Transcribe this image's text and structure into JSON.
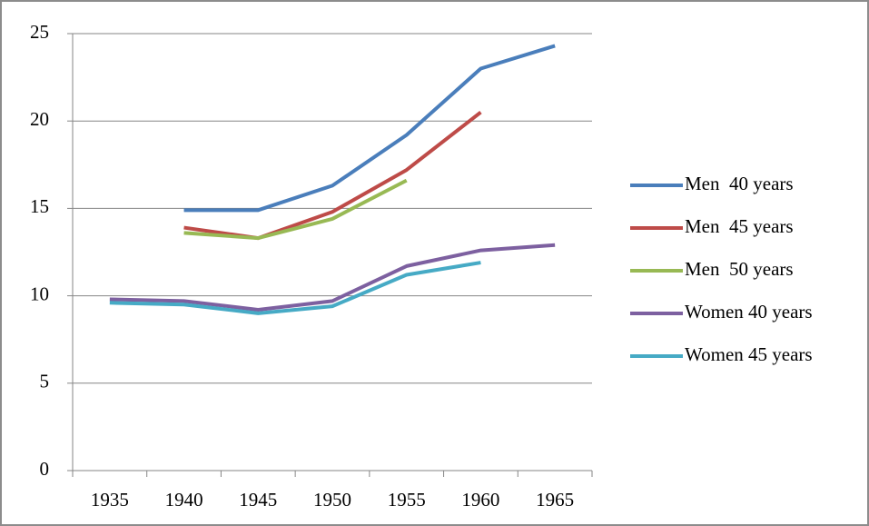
{
  "chart_data": {
    "type": "line",
    "categories": [
      "1935",
      "1940",
      "1945",
      "1950",
      "1955",
      "1960",
      "1965"
    ],
    "series": [
      {
        "name": "Men  40 years",
        "color": "#4a7ebb",
        "values": [
          null,
          14.9,
          14.9,
          16.3,
          19.2,
          23.0,
          24.3
        ]
      },
      {
        "name": "Men  45 years",
        "color": "#be4b48",
        "values": [
          null,
          13.9,
          13.3,
          14.8,
          17.2,
          20.5,
          null
        ]
      },
      {
        "name": "Men  50 years",
        "color": "#98b954",
        "values": [
          null,
          13.6,
          13.3,
          14.4,
          16.6,
          null,
          null
        ]
      },
      {
        "name": "Women 40 years",
        "color": "#7d60a0",
        "values": [
          9.8,
          9.7,
          9.2,
          9.7,
          11.7,
          12.6,
          12.9
        ]
      },
      {
        "name": "Women 45 years",
        "color": "#46aac5",
        "values": [
          9.6,
          9.5,
          9.0,
          9.4,
          11.2,
          11.9,
          null
        ]
      }
    ],
    "ylim": [
      0,
      25
    ],
    "yticks": [
      0,
      5,
      10,
      15,
      20,
      25
    ],
    "grid": true,
    "legend": "right"
  }
}
